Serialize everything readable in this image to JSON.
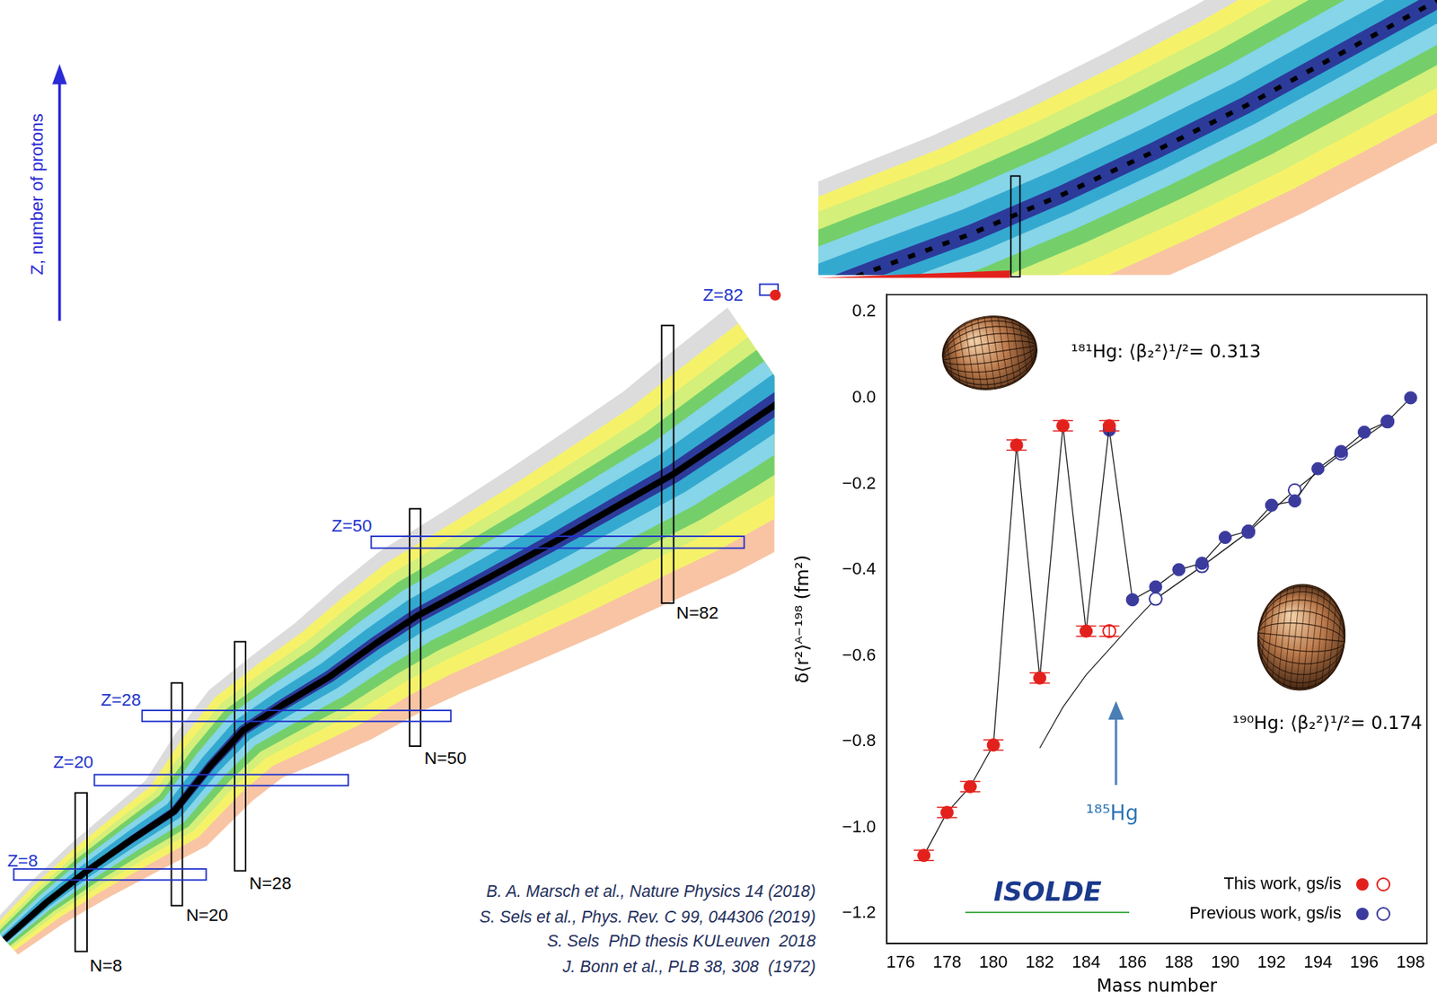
{
  "chart_data": {
    "type": "scatter",
    "x_label": "Mass number",
    "y_label": "δ⟨r²⟩ᴬ⁻¹⁹⁸ (fm²)",
    "xlim": [
      175.4,
      198.7
    ],
    "xticks": [
      176,
      178,
      180,
      182,
      184,
      186,
      188,
      190,
      192,
      194,
      196,
      198
    ],
    "ylim": [
      -1.27,
      0.24
    ],
    "yticks": [
      {
        "value": -1.2,
        "label": "−1.2"
      },
      {
        "value": -1.0,
        "label": "−1.0"
      },
      {
        "value": -0.8,
        "label": "−0.8"
      },
      {
        "value": -0.6,
        "label": "−0.6"
      },
      {
        "value": -0.4,
        "label": "−0.4"
      },
      {
        "value": -0.2,
        "label": "−0.2"
      },
      {
        "value": 0,
        "label": "0.0"
      },
      0.2
    ],
    "grid": false,
    "legend": "lower right",
    "series": [
      {
        "name": "This work, gs/is",
        "color": "#e3211c",
        "marker": "circle",
        "line_style": "solid",
        "x": [
          177,
          178,
          179,
          180,
          181,
          182,
          183,
          184,
          185
        ],
        "values": [
          -1.065,
          -0.965,
          -0.905,
          -0.808,
          -0.11,
          -0.652,
          -0.065,
          -0.543,
          -0.065
        ],
        "errors": [
          0.012,
          0.012,
          0.012,
          0.012,
          0.012,
          0.012,
          0.012,
          0.012,
          0.012
        ]
      },
      {
        "name": "This work, gs/is",
        "color": "#e3211c",
        "marker": "open_circle",
        "line_style": "none",
        "x": [
          185
        ],
        "values": [
          -0.543
        ],
        "errors": [
          0.012
        ]
      },
      {
        "name": "Previous work, gs/is",
        "color": "#3b3b9e",
        "marker": "circle",
        "line_style": "solid",
        "x": [
          185,
          186,
          187,
          188,
          189,
          190,
          191,
          192,
          193,
          194,
          195,
          196,
          197,
          198
        ],
        "values": [
          -0.075,
          -0.47,
          -0.44,
          -0.4,
          -0.385,
          -0.325,
          -0.31,
          -0.25,
          -0.24,
          -0.165,
          -0.125,
          -0.08,
          -0.055,
          0.0
        ]
      },
      {
        "name": "Previous work, gs/is",
        "color": "#3b3b9e",
        "marker": "open_circle",
        "line_style": "solid",
        "x": [
          187,
          189,
          191,
          193,
          195,
          197
        ],
        "values": [
          -0.468,
          -0.392,
          -0.312,
          -0.215,
          -0.13,
          -0.055
        ]
      },
      {
        "type": "line",
        "color": "#333333",
        "marker": "none",
        "line_style": "solid",
        "x": [
          182,
          183,
          184,
          185,
          186,
          187
        ],
        "values": [
          -0.815,
          -0.72,
          -0.645,
          -0.585,
          -0.525,
          -0.468
        ]
      }
    ],
    "annotations": [
      "¹⁸¹Hg: ⟨β₂²⟩¹/²= 0.313",
      "¹⁹⁰Hg: ⟨β₂²⟩¹/²= 0.174",
      "¹⁸⁵Hg",
      "ISOLDE"
    ]
  },
  "nuclide_chart": {
    "axis_label": "Z, number of protons",
    "proton_shells": [
      "Z=8",
      "Z=20",
      "Z=28",
      "Z=50",
      "Z=82"
    ],
    "neutron_shells": [
      "N=8",
      "N=20",
      "N=28",
      "N=50",
      "N=82"
    ]
  },
  "references": [
    "B. A. Marsch et al., Nature Physics 14 (2018)",
    "S. Sels et al., Phys. Rev. C 99, 044306 (2019)",
    "S. Sels  PhD thesis KULeuven  2018",
    "J. Bonn et al., PLB 38, 308  (1972)"
  ]
}
